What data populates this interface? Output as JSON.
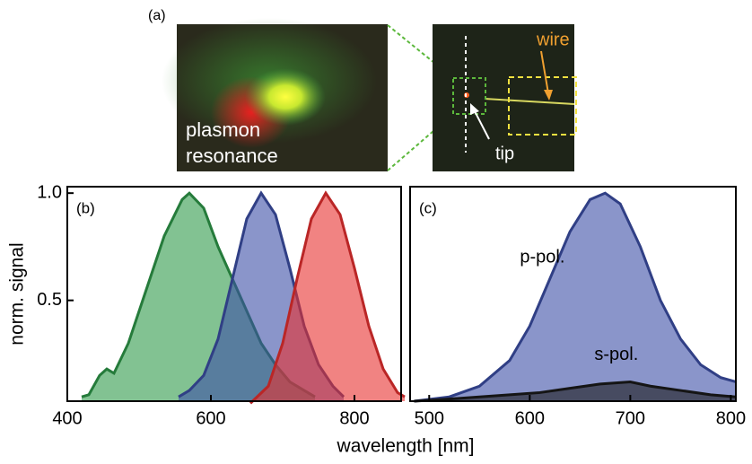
{
  "panel_a": {
    "label": "(a)",
    "text": [
      "plasmon",
      "resonance"
    ],
    "wire": "wire",
    "tip": "tip"
  },
  "xlabel": "wavelength [nm]",
  "chart_data": [
    {
      "type": "area",
      "label": "(b)",
      "ylabel": "norm. signal",
      "xlim": [
        400,
        865
      ],
      "xticks": [
        400,
        600,
        800
      ],
      "ylim": [
        0.03,
        1.03
      ],
      "yticks": [
        {
          "value": 0.5,
          "label": "0.5"
        },
        {
          "value": 1,
          "label": "1.0"
        }
      ],
      "series": [
        {
          "color": "#2e9a4a",
          "x": [
            420,
            430,
            445,
            455,
            465,
            485,
            510,
            535,
            560,
            570,
            590,
            610,
            630,
            650,
            670,
            690,
            710,
            730,
            745
          ],
          "values": [
            0.05,
            0.06,
            0.15,
            0.18,
            0.16,
            0.3,
            0.55,
            0.8,
            0.97,
            1.0,
            0.93,
            0.75,
            0.6,
            0.45,
            0.3,
            0.2,
            0.12,
            0.08,
            0.05
          ]
        },
        {
          "color": "#3c4fa6",
          "x": [
            555,
            570,
            590,
            610,
            630,
            650,
            670,
            690,
            710,
            730,
            750,
            770,
            785
          ],
          "values": [
            0.05,
            0.08,
            0.15,
            0.32,
            0.6,
            0.88,
            1.0,
            0.9,
            0.65,
            0.38,
            0.2,
            0.1,
            0.05
          ]
        },
        {
          "color": "#e8302f",
          "x": [
            655,
            680,
            700,
            720,
            740,
            760,
            780,
            800,
            820,
            840,
            860,
            870
          ],
          "values": [
            0.02,
            0.1,
            0.3,
            0.6,
            0.88,
            1.0,
            0.9,
            0.65,
            0.38,
            0.18,
            0.07,
            0.05
          ]
        }
      ]
    },
    {
      "type": "area",
      "label": "(c)",
      "xlim": [
        481,
        805
      ],
      "xticks": [
        500,
        600,
        700,
        800
      ],
      "ylim": [
        0.03,
        1.03
      ],
      "series": [
        {
          "name": "p-pol.",
          "color": "#3c4fa6",
          "x": [
            485,
            520,
            550,
            580,
            600,
            620,
            640,
            660,
            675,
            690,
            710,
            730,
            750,
            770,
            790,
            805
          ],
          "values": [
            0.03,
            0.05,
            0.1,
            0.22,
            0.38,
            0.6,
            0.82,
            0.97,
            1.0,
            0.95,
            0.75,
            0.5,
            0.32,
            0.2,
            0.14,
            0.12
          ]
        },
        {
          "name": "s-pol.",
          "color": "#1a1a1a",
          "x": [
            485,
            520,
            550,
            580,
            610,
            640,
            670,
            700,
            720,
            750,
            780,
            805
          ],
          "values": [
            0.03,
            0.04,
            0.05,
            0.06,
            0.07,
            0.09,
            0.11,
            0.12,
            0.1,
            0.08,
            0.06,
            0.05
          ]
        }
      ]
    }
  ]
}
